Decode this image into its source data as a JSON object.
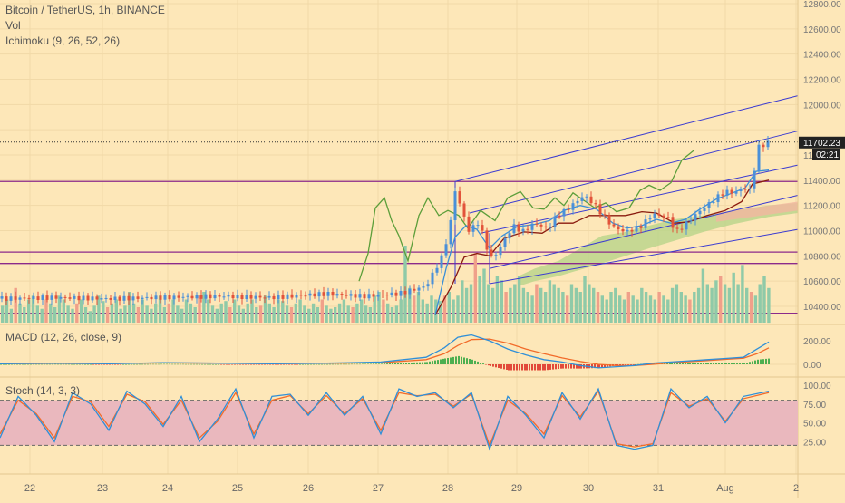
{
  "header": {
    "symbol": "Bitcoin / TetherUS, 1h, BINANCE",
    "volume": "Vol",
    "ichimoku": "Ichimoku (9, 26, 52, 26)",
    "macd": "MACD (12, 26, close, 9)",
    "stoch": "Stoch (14, 3, 3)"
  },
  "price_tag": {
    "price": "11702.23",
    "countdown": "02:21"
  },
  "colors": {
    "background": "#fde7b8",
    "grid": "#f1d9a7",
    "candle_up": "#4a90d9",
    "candle_down": "#e2533a",
    "conversion_line": "#3a8fd8",
    "base_line": "#8a1a0e",
    "lagging_span": "#5c9e3a",
    "cloud_bull": "#b8d48a",
    "cloud_bear": "#f2b6a0",
    "channel": "#3b3bd1",
    "horizontal_level": "#8b2a8b",
    "volume_bar": "#8fcaa8",
    "macd_line": "#2f8fd8",
    "signal_line": "#f26b2a",
    "stoch_k": "#2f8fd8",
    "stoch_d": "#f26b2a",
    "stoch_band": "#eab8be"
  },
  "chart_data": [
    {
      "type": "candlestick",
      "panel": "price",
      "ylim": [
        10300,
        12900
      ],
      "ticks": [
        "10400.00",
        "10600.00",
        "10800.00",
        "11000.00",
        "11200.00",
        "11400.00",
        "11600.00",
        "11800.00",
        "12000.00",
        "12200.00",
        "12400.00",
        "12600.00",
        "12800.00"
      ],
      "last_price": 11702.23,
      "horizontal_levels": [
        11390,
        10830,
        10740,
        10345
      ],
      "x_labels": [
        "22",
        "23",
        "24",
        "25",
        "26",
        "27",
        "28",
        "29",
        "30",
        "31",
        "Aug",
        "2"
      ],
      "close_path": [
        [
          0,
          10460
        ],
        [
          60,
          10470
        ],
        [
          120,
          10460
        ],
        [
          180,
          10470
        ],
        [
          240,
          10480
        ],
        [
          300,
          10470
        ],
        [
          360,
          10500
        ],
        [
          400,
          10480
        ],
        [
          440,
          10500
        ],
        [
          470,
          10560
        ],
        [
          488,
          10800
        ],
        [
          496,
          11020
        ],
        [
          502,
          11320
        ],
        [
          510,
          11150
        ],
        [
          518,
          10980
        ],
        [
          526,
          11080
        ],
        [
          534,
          10950
        ],
        [
          540,
          10780
        ],
        [
          548,
          10820
        ],
        [
          556,
          10920
        ],
        [
          566,
          11040
        ],
        [
          576,
          10990
        ],
        [
          590,
          11060
        ],
        [
          604,
          11010
        ],
        [
          614,
          11120
        ],
        [
          624,
          11160
        ],
        [
          634,
          11220
        ],
        [
          644,
          11280
        ],
        [
          654,
          11220
        ],
        [
          664,
          11130
        ],
        [
          676,
          11030
        ],
        [
          690,
          10990
        ],
        [
          706,
          11030
        ],
        [
          720,
          11130
        ],
        [
          736,
          11110
        ],
        [
          746,
          10990
        ],
        [
          756,
          11050
        ],
        [
          766,
          11120
        ],
        [
          778,
          11190
        ],
        [
          790,
          11260
        ],
        [
          800,
          11310
        ],
        [
          810,
          11300
        ],
        [
          820,
          11340
        ],
        [
          828,
          11320
        ],
        [
          836,
          11660
        ],
        [
          842,
          11680
        ],
        [
          848,
          11702
        ]
      ],
      "conversion_line": [
        [
          480,
          10330
        ],
        [
          492,
          10700
        ],
        [
          502,
          10950
        ],
        [
          514,
          11040
        ],
        [
          526,
          11010
        ],
        [
          540,
          10860
        ],
        [
          554,
          10960
        ],
        [
          570,
          11030
        ],
        [
          590,
          11050
        ],
        [
          606,
          11080
        ],
        [
          622,
          11160
        ],
        [
          640,
          11200
        ],
        [
          658,
          11170
        ],
        [
          676,
          11060
        ],
        [
          692,
          11020
        ],
        [
          708,
          11040
        ],
        [
          724,
          11090
        ],
        [
          740,
          11060
        ],
        [
          756,
          11090
        ],
        [
          772,
          11170
        ],
        [
          790,
          11250
        ],
        [
          808,
          11300
        ],
        [
          822,
          11340
        ],
        [
          834,
          11470
        ],
        [
          848,
          11480
        ]
      ],
      "base_line": [
        [
          480,
          10330
        ],
        [
          498,
          10560
        ],
        [
          512,
          10790
        ],
        [
          526,
          10820
        ],
        [
          540,
          10800
        ],
        [
          556,
          10940
        ],
        [
          578,
          10990
        ],
        [
          598,
          10980
        ],
        [
          616,
          11060
        ],
        [
          632,
          11060
        ],
        [
          650,
          11120
        ],
        [
          668,
          11120
        ],
        [
          690,
          11120
        ],
        [
          708,
          11150
        ],
        [
          724,
          11140
        ],
        [
          744,
          11060
        ],
        [
          760,
          11070
        ],
        [
          780,
          11120
        ],
        [
          800,
          11160
        ],
        [
          818,
          11230
        ],
        [
          830,
          11370
        ],
        [
          848,
          11400
        ]
      ],
      "lagging_span": [
        [
          396,
          10600
        ],
        [
          406,
          10820
        ],
        [
          414,
          11180
        ],
        [
          424,
          11260
        ],
        [
          432,
          11080
        ],
        [
          440,
          10960
        ],
        [
          450,
          10760
        ],
        [
          462,
          11120
        ],
        [
          472,
          11260
        ],
        [
          484,
          11120
        ],
        [
          494,
          11160
        ],
        [
          506,
          11120
        ],
        [
          516,
          11020
        ],
        [
          530,
          11160
        ],
        [
          546,
          11080
        ],
        [
          560,
          11260
        ],
        [
          574,
          11310
        ],
        [
          588,
          11180
        ],
        [
          600,
          11170
        ],
        [
          612,
          11260
        ],
        [
          622,
          11200
        ],
        [
          632,
          11300
        ],
        [
          644,
          11240
        ],
        [
          656,
          11180
        ],
        [
          668,
          11220
        ],
        [
          680,
          11150
        ],
        [
          694,
          11180
        ],
        [
          706,
          11320
        ],
        [
          716,
          11360
        ],
        [
          728,
          11320
        ],
        [
          740,
          11380
        ],
        [
          752,
          11560
        ],
        [
          766,
          11640
        ]
      ],
      "cloud_span_a": [
        [
          572,
          10640
        ],
        [
          590,
          10700
        ],
        [
          616,
          10760
        ],
        [
          640,
          10860
        ],
        [
          664,
          10960
        ],
        [
          690,
          10990
        ],
        [
          716,
          11040
        ],
        [
          744,
          11090
        ],
        [
          776,
          11120
        ],
        [
          808,
          11160
        ],
        [
          848,
          11200
        ],
        [
          880,
          11220
        ]
      ],
      "cloud_span_b": [
        [
          572,
          10560
        ],
        [
          590,
          10600
        ],
        [
          616,
          10640
        ],
        [
          640,
          10690
        ],
        [
          664,
          10740
        ],
        [
          690,
          10800
        ],
        [
          716,
          10860
        ],
        [
          744,
          10920
        ],
        [
          776,
          10990
        ],
        [
          808,
          11050
        ],
        [
          848,
          11110
        ],
        [
          880,
          11140
        ]
      ],
      "channel_lines": [
        {
          "from": [
            502,
            11390
          ],
          "to": [
            880,
            12070
          ]
        },
        {
          "from": [
            518,
            11140
          ],
          "to": [
            880,
            11790
          ]
        },
        {
          "from": [
            530,
            10980
          ],
          "to": [
            880,
            11520
          ]
        },
        {
          "from": [
            540,
            10700
          ],
          "to": [
            880,
            11280
          ]
        },
        {
          "from": [
            540,
            10580
          ],
          "to": [
            880,
            11010
          ]
        }
      ],
      "channel_verticals": [
        [
          502,
          11390,
          10580
        ],
        [
          540,
          10580,
          10980
        ]
      ]
    },
    {
      "type": "bar",
      "panel": "volume",
      "name": "Vol",
      "series_note": "relative hourly volume",
      "values": [
        0.22,
        0.3,
        0.18,
        0.45,
        0.25,
        0.2,
        0.3,
        0.35,
        0.22,
        0.18,
        0.3,
        0.25,
        0.2,
        0.35,
        0.3,
        0.22,
        0.18,
        0.25,
        0.3,
        0.2,
        0.15,
        0.22,
        0.35,
        0.28,
        0.2,
        0.25,
        0.3,
        0.18,
        0.22,
        0.4,
        0.25,
        0.2,
        0.3,
        0.22,
        0.18,
        0.25,
        0.35,
        0.2,
        0.25,
        0.3,
        0.22,
        0.18,
        0.3,
        0.25,
        0.2,
        0.35,
        0.4,
        0.3,
        0.22,
        0.18,
        0.25,
        0.28,
        0.2,
        0.3,
        0.22,
        0.18,
        0.25,
        0.3,
        0.2,
        0.22,
        0.35,
        0.25,
        0.2,
        0.3,
        0.28,
        0.22,
        0.2,
        0.25,
        0.3,
        0.22,
        0.18,
        0.25,
        0.2,
        0.3,
        0.22,
        0.18,
        0.2,
        0.25,
        0.3,
        0.22,
        0.2,
        0.25,
        0.3,
        0.22,
        0.2,
        0.35,
        0.4,
        0.3,
        0.25,
        0.2,
        0.22,
        0.3,
        1.0,
        0.45,
        0.35,
        0.4,
        0.3,
        0.25,
        0.35,
        0.3,
        0.28,
        0.35,
        0.4,
        0.3,
        0.35,
        0.55,
        0.45,
        0.5,
        0.9,
        0.6,
        0.7,
        0.5,
        0.45,
        0.6,
        0.55,
        0.4,
        0.45,
        0.5,
        0.6,
        0.45,
        0.4,
        0.35,
        0.5,
        0.45,
        0.4,
        0.55,
        0.5,
        0.45,
        0.4,
        0.35,
        0.5,
        0.45,
        0.4,
        0.6,
        0.5,
        0.45,
        0.4,
        0.35,
        0.3,
        0.4,
        0.45,
        0.35,
        0.3,
        0.4,
        0.35,
        0.3,
        0.45,
        0.4,
        0.35,
        0.3,
        0.4,
        0.35,
        0.3,
        0.45,
        0.5,
        0.4,
        0.35,
        0.3,
        0.4,
        0.45,
        0.7,
        0.5,
        0.45,
        0.55,
        0.6,
        0.5,
        0.45,
        0.65,
        0.5,
        0.75,
        0.45,
        0.4,
        0.35,
        0.5,
        0.6,
        0.45
      ]
    },
    {
      "type": "line",
      "panel": "macd",
      "name": "MACD (12, 26, close, 9)",
      "ylim": [
        -80,
        300
      ],
      "ticks": [
        "200.00",
        "0.00"
      ],
      "x": [
        0,
        60,
        120,
        180,
        240,
        300,
        360,
        420,
        470,
        490,
        505,
        520,
        540,
        560,
        580,
        600,
        620,
        640,
        660,
        680,
        700,
        720,
        740,
        760,
        780,
        800,
        820,
        835,
        848
      ],
      "macd": [
        5,
        10,
        5,
        15,
        10,
        5,
        10,
        20,
        60,
        140,
        230,
        250,
        200,
        130,
        80,
        40,
        20,
        -10,
        -30,
        -20,
        -10,
        10,
        20,
        30,
        40,
        50,
        60,
        130,
        190
      ],
      "signal": [
        5,
        8,
        6,
        12,
        10,
        6,
        9,
        15,
        40,
        90,
        160,
        210,
        215,
        180,
        130,
        90,
        55,
        25,
        0,
        -10,
        -10,
        0,
        12,
        22,
        32,
        42,
        52,
        90,
        140
      ],
      "histogram": [
        0,
        2,
        -1,
        3,
        0,
        -1,
        1,
        5,
        20,
        50,
        70,
        40,
        -15,
        -50,
        -50,
        -50,
        -35,
        -35,
        -30,
        -10,
        0,
        10,
        8,
        8,
        8,
        8,
        8,
        40,
        50
      ]
    },
    {
      "type": "line",
      "panel": "stoch",
      "name": "Stoch (14, 3, 3)",
      "ylim": [
        0,
        100
      ],
      "ticks": [
        "100.00",
        "75.00",
        "50.00",
        "25.00"
      ],
      "bands": [
        80,
        20
      ],
      "x": [
        0,
        20,
        40,
        60,
        80,
        100,
        120,
        140,
        160,
        180,
        200,
        220,
        240,
        260,
        280,
        300,
        320,
        340,
        360,
        380,
        400,
        420,
        440,
        460,
        480,
        500,
        520,
        540,
        560,
        580,
        600,
        620,
        640,
        660,
        680,
        700,
        720,
        740,
        760,
        780,
        800,
        820,
        848
      ],
      "k": [
        30,
        85,
        60,
        25,
        90,
        75,
        40,
        92,
        75,
        45,
        85,
        25,
        55,
        95,
        30,
        85,
        88,
        60,
        90,
        60,
        85,
        35,
        95,
        85,
        90,
        70,
        90,
        15,
        85,
        60,
        30,
        90,
        55,
        95,
        20,
        15,
        20,
        95,
        70,
        85,
        50,
        85,
        92
      ],
      "d": [
        35,
        80,
        62,
        30,
        85,
        78,
        45,
        88,
        78,
        48,
        80,
        30,
        52,
        90,
        35,
        80,
        86,
        62,
        86,
        62,
        82,
        40,
        90,
        86,
        88,
        72,
        88,
        20,
        80,
        62,
        35,
        86,
        58,
        92,
        22,
        18,
        22,
        90,
        72,
        82,
        52,
        82,
        90
      ]
    }
  ]
}
